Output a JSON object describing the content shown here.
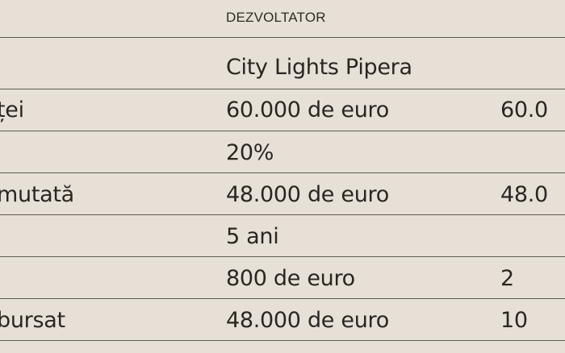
{
  "table": {
    "header": {
      "developer": "DEZVOLTATOR"
    },
    "rows": [
      {
        "label": "",
        "developer": "City Lights Pipera",
        "other": ""
      },
      {
        "label": "ței",
        "developer": "60.000 de euro",
        "other": "60.0"
      },
      {
        "label": "",
        "developer": "20%",
        "other": ""
      },
      {
        "label": "mutată",
        "developer": "48.000 de euro",
        "other": "48.0"
      },
      {
        "label": "",
        "developer": "5 ani",
        "other": ""
      },
      {
        "label": "",
        "developer": "800 de euro",
        "other": "2"
      },
      {
        "label": "bursat",
        "developer": "48.000 de euro",
        "other": "10"
      }
    ]
  }
}
